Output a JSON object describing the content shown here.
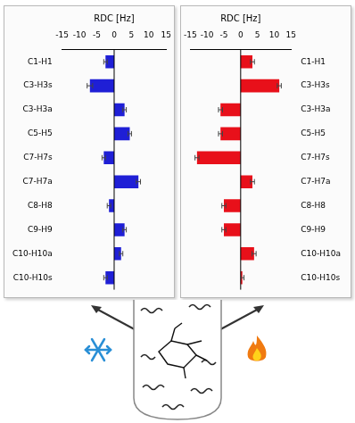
{
  "chart_data": [
    {
      "type": "bar",
      "orientation": "horizontal",
      "xlabel": "RDC [Hz]",
      "categories": [
        "C1-H1",
        "C3-H3s",
        "C3-H3a",
        "C5-H5",
        "C7-H7s",
        "C7-H7a",
        "C8-H8",
        "C9-H9",
        "C10-H10a",
        "C10-H10s"
      ],
      "values": [
        -2.5,
        -7,
        3,
        4.5,
        -3,
        7,
        -1.5,
        3,
        2,
        -2.5
      ],
      "errors": [
        0.5,
        0.8,
        0.5,
        0.5,
        0.5,
        0.6,
        0.5,
        0.5,
        0.5,
        0.5
      ],
      "color": "#1f1fd6",
      "xlim": [
        -15,
        15
      ],
      "xticks": [
        -15,
        -10,
        -5,
        0,
        5,
        10,
        15
      ],
      "grid": false
    },
    {
      "type": "bar",
      "orientation": "horizontal",
      "xlabel": "RDC [Hz]",
      "categories": [
        "C1-H1",
        "C3-H3s",
        "C3-H3a",
        "C5-H5",
        "C7-H7s",
        "C7-H7a",
        "C8-H8",
        "C9-H9",
        "C10-H10a",
        "C10-H10s"
      ],
      "values": [
        3.5,
        11.5,
        -6,
        -6,
        -13,
        3.5,
        -5,
        -5,
        4,
        0.5
      ],
      "errors": [
        0.6,
        0.6,
        0.6,
        0.6,
        0.6,
        0.6,
        0.6,
        0.6,
        0.6,
        0.5
      ],
      "color": "#e8101a",
      "xlim": [
        -15,
        15
      ],
      "xticks": [
        -15,
        -10,
        -5,
        0,
        5,
        10,
        15
      ],
      "grid": false
    }
  ]
}
